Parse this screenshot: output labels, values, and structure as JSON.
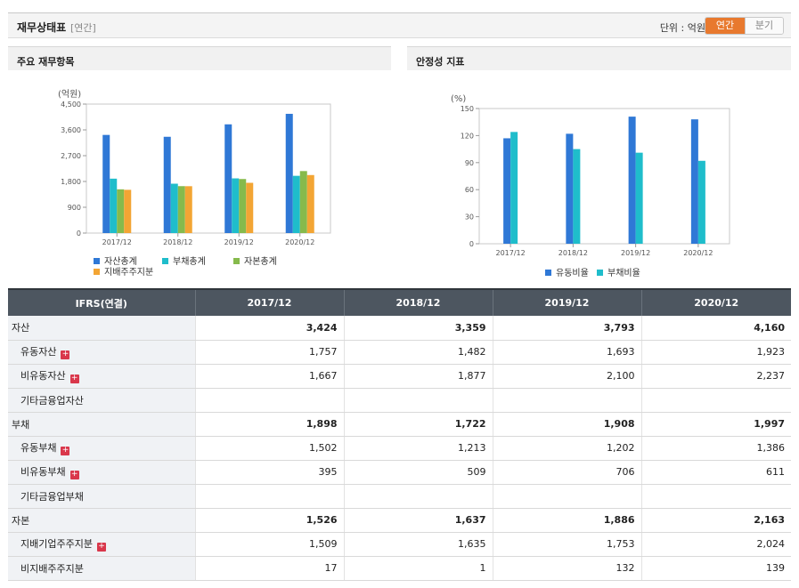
{
  "header": {
    "title": "재무상태표",
    "sub": "[연간]",
    "unit_label": "단위 : 억원",
    "tab_annual": "연간",
    "tab_quarter": "분기"
  },
  "charts": [
    {
      "panel_title": "주요 재무항목",
      "chart_data": {
        "type": "bar",
        "ylabel": "(억원)",
        "categories": [
          "2017/12",
          "2018/12",
          "2019/12",
          "2020/12"
        ],
        "ylim": [
          0,
          4500
        ],
        "yticks": [
          "4,500",
          "3,600",
          "2,700",
          "1,800",
          "900",
          "0"
        ],
        "grid": false,
        "legend_position": "bottom",
        "series": [
          {
            "name": "자산총계",
            "color": "#2f78d6",
            "values": [
              3424,
              3359,
              3793,
              4160
            ]
          },
          {
            "name": "부채총계",
            "color": "#1fbdcb",
            "values": [
              1898,
              1722,
              1908,
              1997
            ]
          },
          {
            "name": "자본총계",
            "color": "#86ba4c",
            "values": [
              1526,
              1637,
              1886,
              2163
            ]
          },
          {
            "name": "지배주주지분",
            "color": "#f3a534",
            "values": [
              1509,
              1635,
              1753,
              2024
            ]
          }
        ]
      }
    },
    {
      "panel_title": "안정성 지표",
      "chart_data": {
        "type": "bar",
        "ylabel": "(%)",
        "categories": [
          "2017/12",
          "2018/12",
          "2019/12",
          "2020/12"
        ],
        "ylim": [
          0,
          150
        ],
        "yticks": [
          "150",
          "120",
          "90",
          "60",
          "30",
          "0"
        ],
        "grid": false,
        "legend_position": "bottom",
        "series": [
          {
            "name": "유동비율",
            "color": "#2f78d6",
            "values": [
              117,
              122,
              141,
              138
            ]
          },
          {
            "name": "부채비율",
            "color": "#1fbdcb",
            "values": [
              124,
              105,
              101,
              92
            ]
          }
        ]
      }
    }
  ],
  "table": {
    "header": [
      "IFRS(연결)",
      "2017/12",
      "2018/12",
      "2019/12",
      "2020/12"
    ],
    "rows": [
      {
        "label": "자산",
        "major": true,
        "plus": false,
        "values": [
          "3,424",
          "3,359",
          "3,793",
          "4,160"
        ]
      },
      {
        "label": "유동자산",
        "major": false,
        "plus": true,
        "values": [
          "1,757",
          "1,482",
          "1,693",
          "1,923"
        ]
      },
      {
        "label": "비유동자산",
        "major": false,
        "plus": true,
        "values": [
          "1,667",
          "1,877",
          "2,100",
          "2,237"
        ]
      },
      {
        "label": "기타금융업자산",
        "major": false,
        "plus": false,
        "values": [
          "",
          "",
          "",
          ""
        ]
      },
      {
        "label": "부채",
        "major": true,
        "plus": false,
        "values": [
          "1,898",
          "1,722",
          "1,908",
          "1,997"
        ]
      },
      {
        "label": "유동부채",
        "major": false,
        "plus": true,
        "values": [
          "1,502",
          "1,213",
          "1,202",
          "1,386"
        ]
      },
      {
        "label": "비유동부채",
        "major": false,
        "plus": true,
        "values": [
          "395",
          "509",
          "706",
          "611"
        ]
      },
      {
        "label": "기타금융업부채",
        "major": false,
        "plus": false,
        "values": [
          "",
          "",
          "",
          ""
        ]
      },
      {
        "label": "자본",
        "major": true,
        "plus": false,
        "values": [
          "1,526",
          "1,637",
          "1,886",
          "2,163"
        ]
      },
      {
        "label": "지배기업주주지분",
        "major": false,
        "plus": true,
        "values": [
          "1,509",
          "1,635",
          "1,753",
          "2,024"
        ]
      },
      {
        "label": "비지배주주지분",
        "major": false,
        "plus": false,
        "values": [
          "17",
          "1",
          "132",
          "139"
        ]
      }
    ]
  }
}
